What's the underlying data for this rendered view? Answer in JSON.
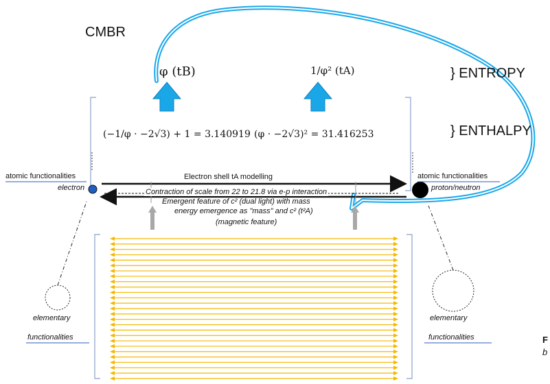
{
  "labels": {
    "cmbr": "CMBR",
    "entropy": "} ENTROPY",
    "enthalpy": "} ENTHALPY",
    "phi_tb": "φ  (tB)",
    "inv_phi_sq_ta": "1/φ² (tA)",
    "equation_left": "(−1/φ · −2√3) + 1 = 3.140919",
    "equation_right": "(φ · −2√3)² = 31.416253",
    "atomic_left": "atomic functionalities",
    "atomic_right": "atomic functionalities",
    "electron_shell": "Electron shell tA modelling",
    "contraction": "Contraction of scale from 22 to 21.8 via e-p interaction",
    "electron": "electron",
    "proton_neutron": "proton/neutron",
    "emergent": "Emergent feature of c² (dual light) with mass",
    "energy_emergence": "energy emergence as \"mass\" and  c² (t²A)",
    "magnetic": "(magnetic feature)",
    "elementary_left_1": "elementary",
    "elementary_left_2": "functionalities",
    "elementary_right_1": "elementary",
    "elementary_right_2": "functionalities",
    "caption_f": "F",
    "caption_b": "b"
  },
  "colors": {
    "blue_arrow": "#1aa7e8",
    "loop": "#1aa7e8",
    "dashed_blue": "#2b59c3",
    "yellow": "#f5b800",
    "grey_arrow": "#a8a8a8",
    "electron": "#1f5fbf",
    "proton": "#000000"
  },
  "icons": {
    "electron": "blue-circle",
    "proton": "black-circle",
    "arrow_up": "blue-up-arrow"
  },
  "yellow_line_count": 27
}
